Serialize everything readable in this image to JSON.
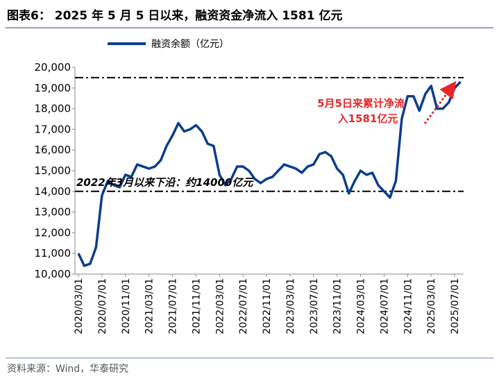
{
  "chart_data": {
    "type": "line",
    "title": "图表6：  2025 年 5 月 5 日以来，融资资金净流入 1581 亿元",
    "source": "资料来源：Wind，华泰研究",
    "categories": [
      "2020/03/01",
      null,
      null,
      null,
      "2020/07/01",
      null,
      null,
      null,
      "2020/11/01",
      null,
      null,
      null,
      "2021/03/01",
      null,
      null,
      null,
      "2021/07/01",
      null,
      null,
      null,
      "2021/11/01",
      null,
      null,
      null,
      "2022/03/01",
      null,
      null,
      null,
      "2022/07/01",
      null,
      null,
      null,
      "2022/11/01",
      null,
      null,
      null,
      "2023/03/01",
      null,
      null,
      null,
      "2023/07/01",
      null,
      null,
      null,
      "2023/11/01",
      null,
      null,
      null,
      "2024/03/01",
      null,
      null,
      null,
      "2024/07/01",
      null,
      null,
      null,
      "2024/11/01",
      null,
      null,
      null,
      "2025/03/01",
      null,
      null,
      null,
      "2025/07/01",
      null
    ],
    "series": [
      {
        "name": "融资余额（亿元）",
        "color": "#0b3d8c",
        "values": [
          11000,
          10400,
          10500,
          11300,
          13800,
          14500,
          14300,
          14200,
          14800,
          14700,
          15300,
          15200,
          15100,
          15200,
          15500,
          16200,
          16700,
          17300,
          16900,
          17000,
          17200,
          16900,
          16300,
          16200,
          14800,
          14300,
          14600,
          15200,
          15200,
          15000,
          14600,
          14400,
          14600,
          14700,
          15000,
          15300,
          15200,
          15100,
          14900,
          15200,
          15300,
          15800,
          15900,
          15700,
          15100,
          14800,
          13900,
          14500,
          15000,
          14800,
          14900,
          14300,
          14000,
          13700,
          14500,
          17500,
          18600,
          18600,
          17900,
          18700,
          19100,
          18000,
          18000,
          18300,
          19000,
          19300
        ]
      }
    ],
    "ylim": [
      10000,
      20000
    ],
    "yticks": [
      {
        "value": 10000,
        "label": "10,000"
      },
      {
        "value": 11000,
        "label": "11,000"
      },
      {
        "value": 12000,
        "label": "12,000"
      },
      {
        "value": 13000,
        "label": "13,000"
      },
      {
        "value": 14000,
        "label": "14,000"
      },
      {
        "value": 15000,
        "label": "15,000"
      },
      {
        "value": 16000,
        "label": "16,000"
      },
      {
        "value": 17000,
        "label": "17,000"
      },
      {
        "value": 18000,
        "label": "18,000"
      },
      {
        "value": 19000,
        "label": "19,000"
      },
      {
        "value": 20000,
        "label": "20,000"
      }
    ],
    "reference_lines": [
      19500,
      14000
    ],
    "annotations": [
      "2022年3月以来下沿：约14000亿元",
      "5月5日来累计净流",
      "入1581亿元"
    ],
    "legend": "top"
  }
}
